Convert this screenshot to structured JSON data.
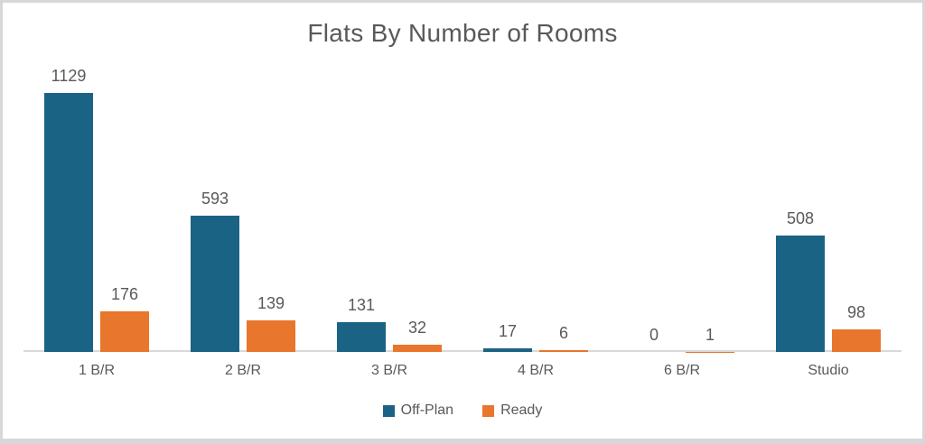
{
  "chart_data": {
    "type": "bar",
    "title": "Flats By Number of Rooms",
    "categories": [
      "1 B/R",
      "2 B/R",
      "3 B/R",
      "4 B/R",
      "6 B/R",
      "Studio"
    ],
    "series": [
      {
        "name": "Off-Plan",
        "color": "#1B6385",
        "values": [
          1129,
          593,
          131,
          17,
          0,
          508
        ]
      },
      {
        "name": "Ready",
        "color": "#E8762C",
        "values": [
          176,
          139,
          32,
          6,
          1,
          98
        ]
      }
    ],
    "ylim": [
      0,
      1200
    ],
    "grid": false,
    "legend_position": "bottom",
    "data_labels": true,
    "text_color": "#595959",
    "axis_line_color": "#D9D9D9"
  }
}
